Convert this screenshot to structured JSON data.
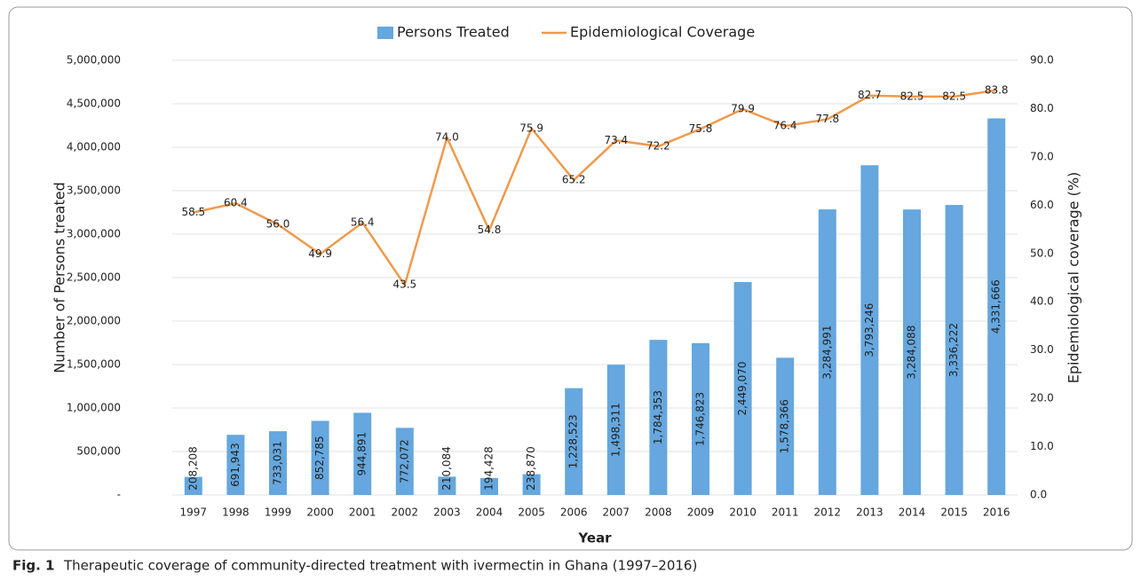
{
  "chart_data": {
    "type": "bar-line",
    "x_label": "Year",
    "y_label": "Number of Persons treated",
    "y2_label": "Epidemiological coverage (%)",
    "categories": [
      "1997",
      "1998",
      "1999",
      "2000",
      "2001",
      "2002",
      "2003",
      "2004",
      "2005",
      "2006",
      "2007",
      "2008",
      "2009",
      "2010",
      "2011",
      "2012",
      "2013",
      "2014",
      "2015",
      "2016"
    ],
    "series": [
      {
        "name": "Persons Treated",
        "type": "bar",
        "color": "#65a7de",
        "values": [
          208208,
          691943,
          733031,
          852785,
          944891,
          772072,
          210084,
          194428,
          238870,
          1228523,
          1498311,
          1784353,
          1746823,
          2449070,
          1578366,
          3284991,
          3793246,
          3284088,
          3336222,
          4331666
        ],
        "value_labels": [
          "208,208",
          "691,943",
          "733,031",
          "852,785",
          "944,891",
          "772,072",
          "210,084",
          "194,428",
          "238,870",
          "1,228,523",
          "1,498,311",
          "1,784,353",
          "1,746,823",
          "2,449,070",
          "1,578,366",
          "3,284,991",
          "3,793,246",
          "3,284,088",
          "3,336,222",
          "4,331,666"
        ]
      },
      {
        "name": "Epidemiological Coverage",
        "type": "line",
        "axis": "y2",
        "color": "#ef9a4c",
        "values": [
          58.5,
          60.4,
          56.0,
          49.9,
          56.4,
          43.5,
          74.0,
          54.8,
          75.9,
          65.2,
          73.4,
          72.2,
          75.8,
          79.9,
          76.4,
          77.8,
          82.7,
          82.5,
          82.5,
          83.8
        ],
        "value_labels": [
          "58.5",
          "60.4",
          "56.0",
          "49.9",
          "56.4",
          "43.5",
          "74.0",
          "54.8",
          "75.9",
          "65.2",
          "73.4",
          "72.2",
          "75.8",
          "79.9",
          "76.4",
          "77.8",
          "82.7",
          "82.5",
          "82.5",
          "83.8"
        ]
      }
    ],
    "ylim": [
      0,
      5000000
    ],
    "yticks": [
      {
        "value": 0,
        "label": "-"
      },
      {
        "value": 500000,
        "label": "500,000"
      },
      {
        "value": 1000000,
        "label": "1,000,000"
      },
      {
        "value": 1500000,
        "label": "1,500,000"
      },
      {
        "value": 2000000,
        "label": "2,000,000"
      },
      {
        "value": 2500000,
        "label": "2,500,000"
      },
      {
        "value": 3000000,
        "label": "3,000,000"
      },
      {
        "value": 3500000,
        "label": "3,500,000"
      },
      {
        "value": 4000000,
        "label": "4,000,000"
      },
      {
        "value": 4500000,
        "label": "4,500,000"
      },
      {
        "value": 5000000,
        "label": "5,000,000"
      }
    ],
    "y2lim": [
      0,
      90
    ],
    "y2ticks": [
      {
        "value": 0,
        "label": "0.0"
      },
      {
        "value": 10,
        "label": "10.0"
      },
      {
        "value": 20,
        "label": "20.0"
      },
      {
        "value": 30,
        "label": "30.0"
      },
      {
        "value": 40,
        "label": "40.0"
      },
      {
        "value": 50,
        "label": "50.0"
      },
      {
        "value": 60,
        "label": "60.0"
      },
      {
        "value": 70,
        "label": "70.0"
      },
      {
        "value": 80,
        "label": "80.0"
      },
      {
        "value": 90,
        "label": "90.0"
      }
    ],
    "grid": true,
    "legend": "top"
  },
  "caption": {
    "label": "Fig. 1",
    "text": "Therapeutic coverage of community-directed treatment with ivermectin in Ghana (1997–2016)"
  }
}
